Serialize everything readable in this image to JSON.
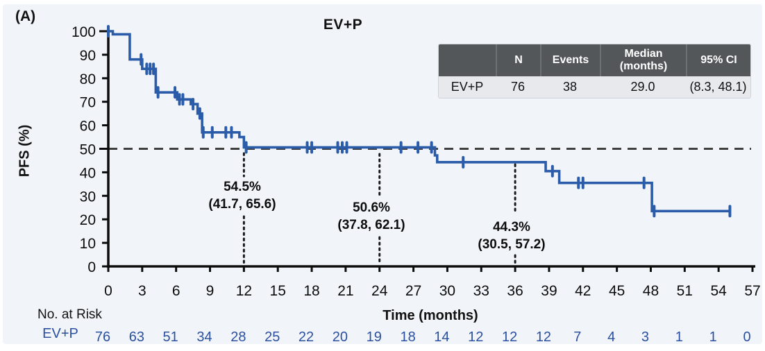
{
  "panel_label": "(A)",
  "title": "EV+P",
  "ylabel": "PFS (%)",
  "xlabel": "Time (months)",
  "colors": {
    "background": "#f1f5f9",
    "curve": "#2b5ca9",
    "risk_text": "#2b4fa0",
    "axis": "#0c0c0c",
    "dashed_reference": "#3f3f3f",
    "dotted_milestone": "#1a1a1a",
    "table_header_bg": "#53575a",
    "table_row_bg": "#e7e9ec"
  },
  "stats_table": {
    "headers": {
      "group": "",
      "n": "N",
      "events": "Events",
      "median": "Median\n(months)",
      "ci": "95% CI"
    },
    "row": {
      "group": "EV+P",
      "n": "76",
      "events": "38",
      "median": "29.0",
      "ci": "(8.3, 48.1)"
    }
  },
  "annotations": [
    {
      "month": 12,
      "line1": "54.5%",
      "line2": "(41.7, 65.6)"
    },
    {
      "month": 24,
      "line1": "50.6%",
      "line2": "(37.8, 62.1)"
    },
    {
      "month": 36,
      "line1": "44.3%",
      "line2": "(30.5, 57.2)"
    }
  ],
  "risk": {
    "header": "No. at Risk",
    "label": "EV+P",
    "values": [
      "76",
      "63",
      "51",
      "34",
      "28",
      "25",
      "22",
      "20",
      "19",
      "18",
      "14",
      "12",
      "12",
      "12",
      "7",
      "4",
      "3",
      "1",
      "1",
      "0"
    ]
  },
  "chart_data": {
    "type": "line",
    "subtype": "kaplan-meier-step",
    "title": "EV+P",
    "xlabel": "Time (months)",
    "ylabel": "PFS (%)",
    "xlim": [
      0,
      57
    ],
    "ylim": [
      0,
      100
    ],
    "xticks": [
      0,
      3,
      6,
      9,
      12,
      15,
      18,
      21,
      24,
      27,
      30,
      33,
      36,
      39,
      42,
      45,
      48,
      51,
      54,
      57
    ],
    "yticks": [
      0,
      10,
      20,
      30,
      40,
      50,
      60,
      70,
      80,
      90,
      100
    ],
    "grid": false,
    "reference_line_y": 50,
    "series": [
      {
        "name": "EV+P",
        "n": 76,
        "events": 38,
        "median_months": 29.0,
        "median_ci": [
          8.3,
          48.1
        ],
        "steps": [
          [
            0,
            100
          ],
          [
            0.4,
            98.7
          ],
          [
            1.9,
            88
          ],
          [
            3.0,
            84
          ],
          [
            4.2,
            74
          ],
          [
            6.1,
            71
          ],
          [
            7.3,
            69
          ],
          [
            7.9,
            65
          ],
          [
            8.3,
            57
          ],
          [
            11.6,
            55
          ],
          [
            12.0,
            50.6
          ],
          [
            28.9,
            47.2
          ],
          [
            29.1,
            44.3
          ],
          [
            38.7,
            40.5
          ],
          [
            39.9,
            35.5
          ],
          [
            48.1,
            23.5
          ],
          [
            55,
            23.5
          ]
        ],
        "censor_marks": [
          [
            0,
            100
          ],
          [
            2.9,
            88
          ],
          [
            3.4,
            84
          ],
          [
            3.7,
            84
          ],
          [
            4.0,
            84
          ],
          [
            4.4,
            74
          ],
          [
            5.9,
            74
          ],
          [
            6.3,
            71
          ],
          [
            6.6,
            71
          ],
          [
            7.5,
            69
          ],
          [
            8.1,
            65
          ],
          [
            8.4,
            57
          ],
          [
            9.2,
            57
          ],
          [
            10.4,
            57
          ],
          [
            10.9,
            57
          ],
          [
            12.2,
            50.6
          ],
          [
            17.6,
            50.6
          ],
          [
            18.0,
            50.6
          ],
          [
            20.3,
            50.6
          ],
          [
            20.7,
            50.6
          ],
          [
            21.1,
            50.6
          ],
          [
            25.9,
            50.6
          ],
          [
            27.4,
            50.6
          ],
          [
            28.6,
            50.6
          ],
          [
            31.4,
            44.3
          ],
          [
            39.3,
            40.5
          ],
          [
            41.6,
            35.5
          ],
          [
            42.0,
            35.5
          ],
          [
            47.4,
            35.5
          ],
          [
            48.3,
            23.5
          ],
          [
            55,
            23.5
          ]
        ]
      }
    ],
    "milestones": [
      {
        "month": 12,
        "estimate_pct": 54.5,
        "ci": [
          41.7,
          65.6
        ]
      },
      {
        "month": 24,
        "estimate_pct": 50.6,
        "ci": [
          37.8,
          62.1
        ]
      },
      {
        "month": 36,
        "estimate_pct": 44.3,
        "ci": [
          30.5,
          57.2
        ]
      }
    ],
    "at_risk": {
      "label": "EV+P",
      "times": [
        0,
        3,
        6,
        9,
        12,
        15,
        18,
        21,
        24,
        27,
        30,
        33,
        36,
        39,
        42,
        45,
        48,
        51,
        54,
        57
      ],
      "counts": [
        76,
        63,
        51,
        34,
        28,
        25,
        22,
        20,
        19,
        18,
        14,
        12,
        12,
        12,
        7,
        4,
        3,
        1,
        1,
        0
      ]
    }
  }
}
